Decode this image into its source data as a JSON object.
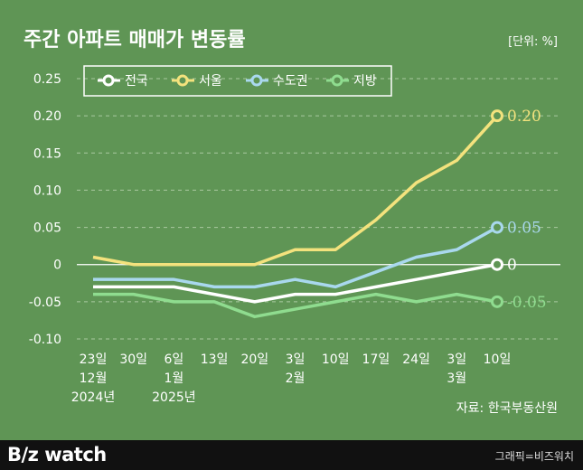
{
  "title": "주간 아파트 매매가 변동률",
  "unit": "[단위: %]",
  "source": "자료: 한국부동산원",
  "footer": {
    "brand_left": "B/z",
    "brand_right": " watch",
    "credit": "그래픽=비즈워치"
  },
  "colors": {
    "background": "#5f9555",
    "grid": "#a9c9a0",
    "axis_text": "#ffffff",
    "national": "#ffffff",
    "seoul": "#f3e27d",
    "metro": "#a9d8ee",
    "regional": "#8fdc8f"
  },
  "chart_data": {
    "type": "line",
    "title": "주간 아파트 매매가 변동률",
    "ylabel": "",
    "xlabel": "",
    "ylim": [
      -0.1,
      0.25
    ],
    "yticks": [
      "0.25",
      "0.20",
      "0.15",
      "0.10",
      "0.05",
      "0",
      "-0.05",
      "-0.10"
    ],
    "ytick_values": [
      0.25,
      0.2,
      0.15,
      0.1,
      0.05,
      0,
      -0.05,
      -0.1
    ],
    "categories": [
      "23일",
      "30일",
      "6일",
      "13일",
      "20일",
      "3일",
      "10일",
      "17일",
      "24일",
      "3일",
      "10일"
    ],
    "category_lines": [
      [
        "23일",
        "12월",
        "2024년"
      ],
      [
        "30일"
      ],
      [
        "6일",
        "1월",
        "2025년"
      ],
      [
        "13일"
      ],
      [
        "20일"
      ],
      [
        "3일",
        "2월"
      ],
      [
        "10일"
      ],
      [
        "17일"
      ],
      [
        "24일"
      ],
      [
        "3일",
        "3월"
      ],
      [
        "10일"
      ]
    ],
    "grid": true,
    "legend_position": "top-left",
    "series": [
      {
        "name": "전국",
        "color_key": "national",
        "values": [
          -0.03,
          -0.03,
          -0.03,
          -0.04,
          -0.05,
          -0.04,
          -0.04,
          -0.03,
          -0.02,
          -0.01,
          0
        ],
        "end_label": "0"
      },
      {
        "name": "서울",
        "color_key": "seoul",
        "values": [
          0.01,
          0,
          0,
          0,
          0,
          0.02,
          0.02,
          0.06,
          0.11,
          0.14,
          0.2
        ],
        "end_label": "0.20"
      },
      {
        "name": "수도권",
        "color_key": "metro",
        "values": [
          -0.02,
          -0.02,
          -0.02,
          -0.03,
          -0.03,
          -0.02,
          -0.03,
          -0.01,
          0.01,
          0.02,
          0.05
        ],
        "end_label": "0.05"
      },
      {
        "name": "지방",
        "color_key": "regional",
        "values": [
          -0.04,
          -0.04,
          -0.05,
          -0.05,
          -0.07,
          -0.06,
          -0.05,
          -0.04,
          -0.05,
          -0.04,
          -0.05
        ],
        "end_label": "-0.05"
      }
    ]
  }
}
